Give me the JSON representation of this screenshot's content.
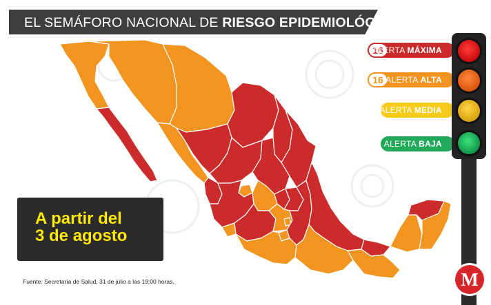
{
  "title": {
    "prefix": "EL SEMÁFORO NACIONAL DE ",
    "highlight": "RIESGO EPIDEMIOLÓGICO"
  },
  "colors": {
    "maxima": "#cc2b2b",
    "alta": "#f29420",
    "media": "#f7cb1b",
    "baja": "#22a95a",
    "panel": "#2b2b2b",
    "highlight_text": "#ffe800"
  },
  "legend": [
    {
      "count": "16",
      "prefix": "ALERTA ",
      "level": "MÁXIMA",
      "color": "#cc2b2b"
    },
    {
      "count": "16",
      "prefix": "ALERTA ",
      "level": "ALTA",
      "color": "#f29420"
    },
    {
      "count": "",
      "prefix": "ALERTA ",
      "level": "MEDIA",
      "color": "#f7cb1b"
    },
    {
      "count": "",
      "prefix": "ALERTA ",
      "level": "BAJA",
      "color": "#22a95a"
    }
  ],
  "info": {
    "line1": "A partir del",
    "line2": "3 de agosto"
  },
  "source": "Fuente: Secretaría de Salud, 31 de julio a las 19:00 horas.",
  "logo": {
    "letter": "M",
    "icon": "milenio-logo-icon"
  },
  "traffic_light": {
    "icon": "traffic-light-icon"
  }
}
